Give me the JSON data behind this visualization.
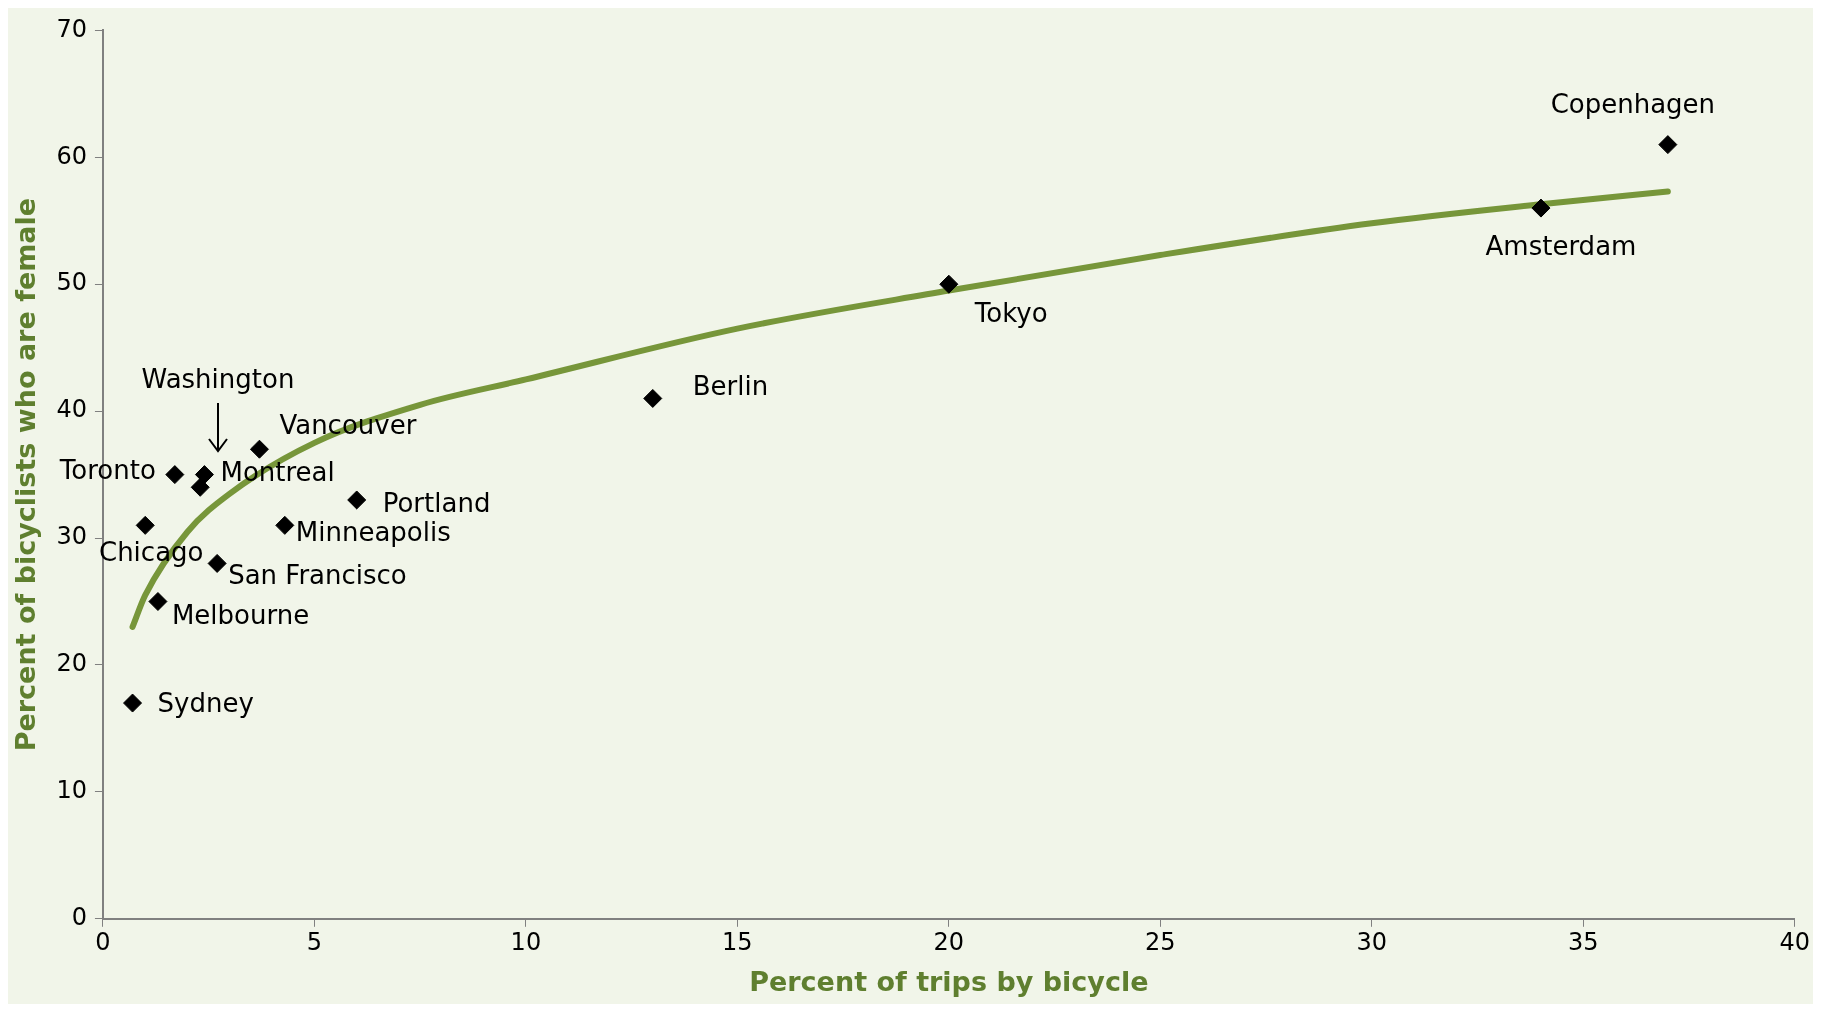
{
  "chart_data": {
    "type": "scatter",
    "xlabel": "Percent of trips by bicycle",
    "ylabel": "Percent of bicyclists who are female",
    "xlim": [
      0,
      40
    ],
    "xticks": [
      0,
      5,
      10,
      15,
      20,
      25,
      30,
      35,
      40
    ],
    "ylim": [
      0,
      70
    ],
    "yticks": [
      0,
      10,
      20,
      30,
      40,
      50,
      60,
      70
    ],
    "grid": false,
    "legend": false,
    "marker": "diamond",
    "series": [
      {
        "color": "#000000",
        "x": [
          0.7,
          1.3,
          1.0,
          1.7,
          2.4,
          2.3,
          2.7,
          3.7,
          4.3,
          6.0,
          13,
          20,
          34,
          37
        ],
        "values": [
          17,
          25,
          31,
          35,
          35,
          34,
          28,
          37,
          31,
          33,
          41,
          50,
          56,
          61
        ]
      },
      {
        "type": "line",
        "color": "#77963a",
        "marker": "none",
        "x": [
          0.7,
          1,
          2,
          3,
          5,
          7.5,
          10,
          15,
          20,
          25,
          30,
          34,
          37
        ],
        "values": [
          23,
          25.5,
          30.5,
          33.5,
          37.5,
          40.5,
          42.5,
          46.5,
          49.5,
          52.3,
          54.8,
          56.3,
          57.3
        ]
      }
    ],
    "annotations": [
      {
        "text": "Sydney",
        "x": 0.7,
        "y": 17
      },
      {
        "text": "Melbourne",
        "x": 1.3,
        "y": 25
      },
      {
        "text": "Chicago",
        "x": 1.0,
        "y": 31
      },
      {
        "text": "Toronto",
        "x": 1.7,
        "y": 35
      },
      {
        "text": "Montreal",
        "x": 2.4,
        "y": 35
      },
      "Washington",
      {
        "text": "San Francisco",
        "x": 2.7,
        "y": 28
      },
      {
        "text": "Vancouver",
        "x": 3.7,
        "y": 37
      },
      {
        "text": "Minneapolis",
        "x": 4.3,
        "y": 31
      },
      {
        "text": "Portland",
        "x": 6.0,
        "y": 33
      },
      {
        "text": "Berlin",
        "x": 13,
        "y": 41
      },
      {
        "text": "Tokyo",
        "x": 20,
        "y": 50
      },
      {
        "text": "Amsterdam",
        "x": 34,
        "y": 56
      },
      {
        "text": "Copenhagen",
        "x": 37,
        "y": 61
      }
    ]
  }
}
